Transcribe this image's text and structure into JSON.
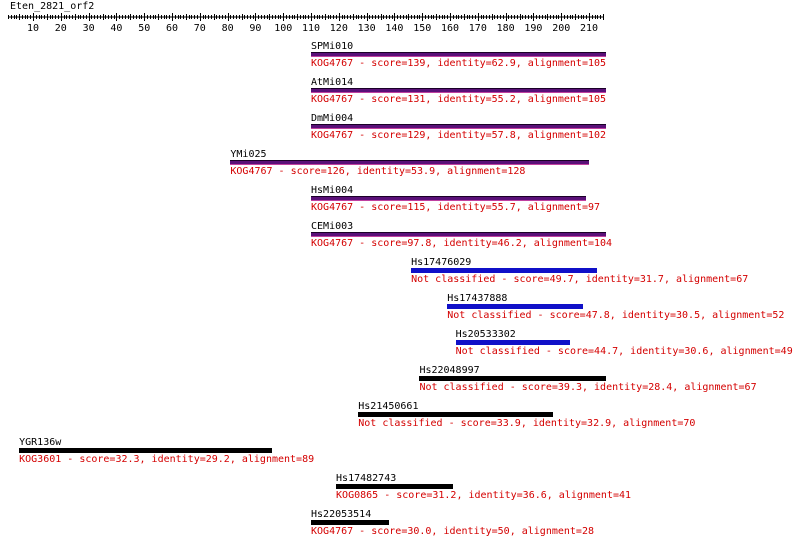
{
  "query_name": "Eten_2821_orf2",
  "axis": {
    "min": 1,
    "max": 215,
    "ticks": [
      10,
      20,
      30,
      40,
      50,
      60,
      70,
      80,
      90,
      100,
      110,
      120,
      130,
      140,
      150,
      160,
      170,
      180,
      190,
      200,
      210
    ]
  },
  "hits": [
    {
      "name": "SPMi010",
      "start": 110,
      "end": 216,
      "color": "#5a1078",
      "kind": "kog",
      "desc": "KOG4767 - score=139, identity=62.9, alignment=105"
    },
    {
      "name": "AtMi014",
      "start": 110,
      "end": 216,
      "color": "#5a1078",
      "kind": "kog",
      "desc": "KOG4767 - score=131, identity=55.2, alignment=105"
    },
    {
      "name": "DmMi004",
      "start": 110,
      "end": 216,
      "color": "#5a1078",
      "kind": "kog",
      "desc": "KOG4767 - score=129, identity=57.8, alignment=102"
    },
    {
      "name": "YMi025",
      "start": 81,
      "end": 210,
      "color": "#5a1078",
      "kind": "kog",
      "desc": "KOG4767 - score=126, identity=53.9, alignment=128"
    },
    {
      "name": "HsMi004",
      "start": 110,
      "end": 209,
      "color": "#5a1078",
      "kind": "kog",
      "desc": "KOG4767 - score=115, identity=55.7, alignment=97"
    },
    {
      "name": "CEMi003",
      "start": 110,
      "end": 216,
      "color": "#5a1078",
      "kind": "kog",
      "desc": "KOG4767 - score=97.8, identity=46.2, alignment=104"
    },
    {
      "name": "Hs17476029",
      "start": 146,
      "end": 213,
      "color": "#1010c8",
      "kind": "nc",
      "desc": "Not classified - score=49.7, identity=31.7, alignment=67"
    },
    {
      "name": "Hs17437888",
      "start": 159,
      "end": 208,
      "color": "#1010c8",
      "kind": "nc",
      "desc": "Not classified - score=47.8, identity=30.5, alignment=52"
    },
    {
      "name": "Hs20533302",
      "start": 162,
      "end": 203,
      "color": "#1010c8",
      "kind": "nc",
      "desc": "Not classified - score=44.7, identity=30.6, alignment=49"
    },
    {
      "name": "Hs22048997",
      "start": 149,
      "end": 216,
      "color": "#000000",
      "kind": "blk",
      "desc": "Not classified - score=39.3, identity=28.4, alignment=67"
    },
    {
      "name": "Hs21450661",
      "start": 127,
      "end": 197,
      "color": "#000000",
      "kind": "blk",
      "desc": "Not classified - score=33.9, identity=32.9, alignment=70"
    },
    {
      "name": "YGR136w",
      "start": 5,
      "end": 96,
      "color": "#000000",
      "kind": "blk",
      "desc": "KOG3601 - score=32.3, identity=29.2, alignment=89"
    },
    {
      "name": "Hs17482743",
      "start": 119,
      "end": 161,
      "color": "#000000",
      "kind": "blk",
      "desc": "KOG0865 - score=31.2, identity=36.6, alignment=41"
    },
    {
      "name": "Hs22053514",
      "start": 110,
      "end": 138,
      "color": "#000000",
      "kind": "blk",
      "desc": "KOG4767 - score=30.0, identity=50, alignment=28"
    }
  ]
}
